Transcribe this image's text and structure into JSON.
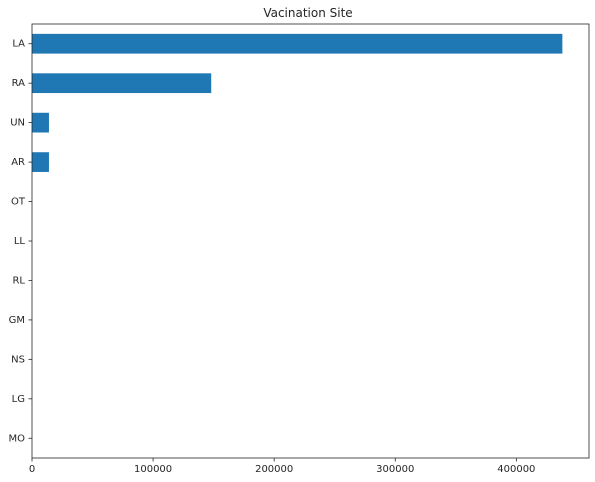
{
  "chart_data": {
    "type": "bar",
    "orientation": "horizontal",
    "title": "Vacination Site",
    "xlabel": "",
    "ylabel": "",
    "categories": [
      "LA",
      "RA",
      "UN",
      "AR",
      "OT",
      "LL",
      "RL",
      "GM",
      "NS",
      "LG",
      "MO"
    ],
    "values": [
      438000,
      148000,
      14000,
      14000,
      20,
      15,
      10,
      8,
      5,
      3,
      2
    ],
    "xlim": [
      0,
      460000
    ],
    "xticks": [
      0,
      100000,
      200000,
      300000,
      400000
    ],
    "xtick_labels": [
      "0",
      "100000",
      "200000",
      "300000",
      "400000"
    ],
    "grid": false,
    "legend": "none",
    "bar_color": "#1f77b4"
  }
}
